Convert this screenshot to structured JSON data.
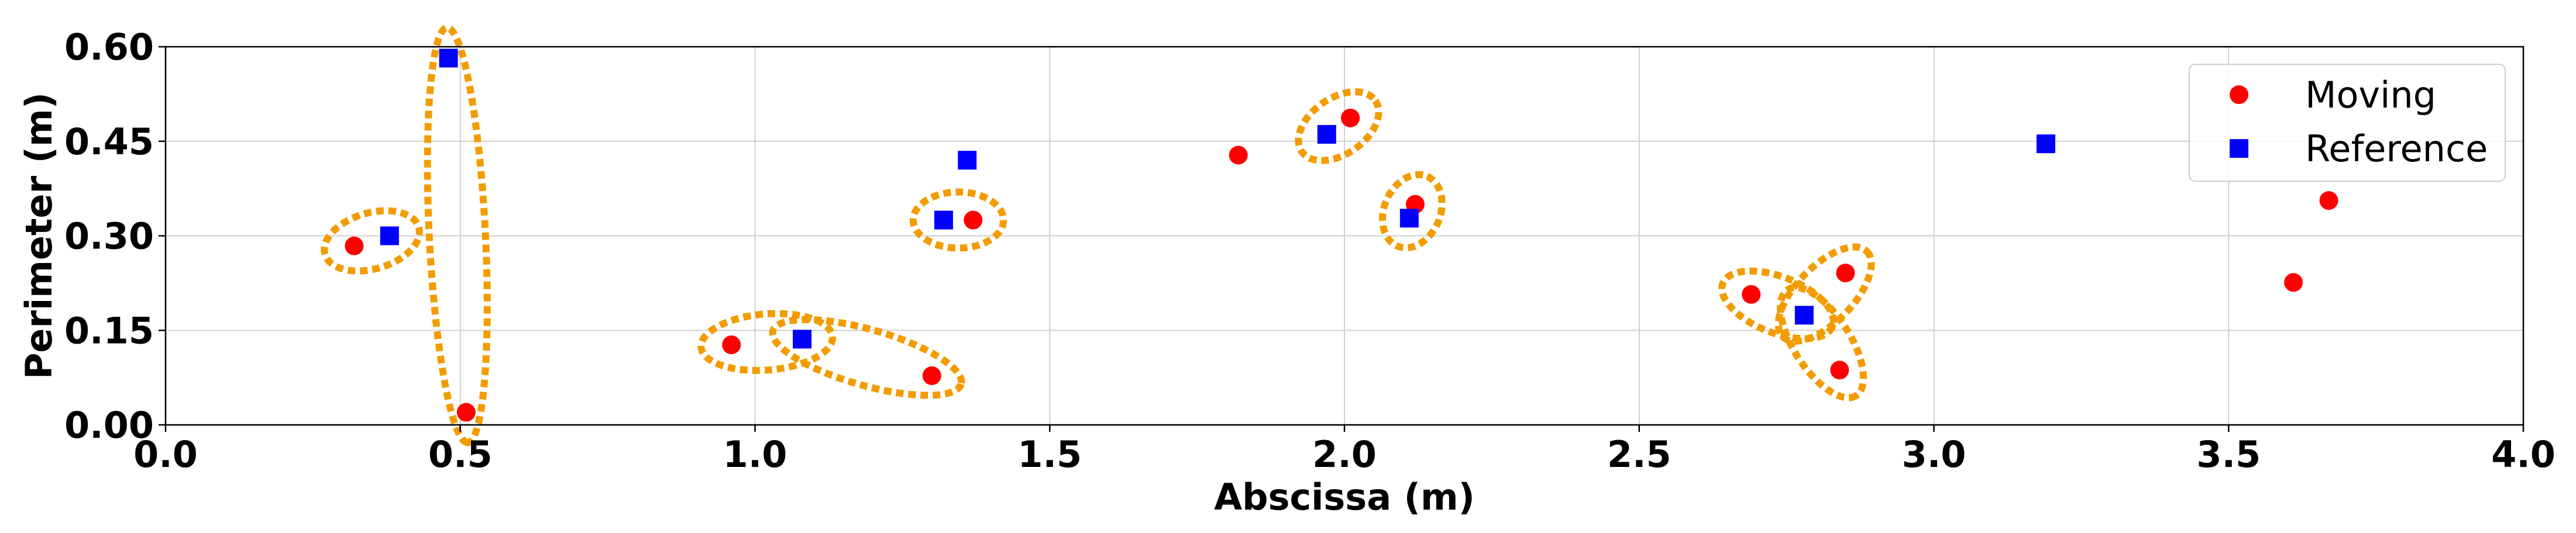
{
  "chart_data": {
    "type": "scatter",
    "title": "",
    "xlabel": "Abscissa (m)",
    "ylabel": "Perimeter (m)",
    "xlim": [
      0.0,
      4.0
    ],
    "ylim": [
      0.0,
      0.6
    ],
    "xticks": [
      "0.0",
      "0.5",
      "1.0",
      "1.5",
      "2.0",
      "2.5",
      "3.0",
      "3.5",
      "4.0"
    ],
    "yticks": [
      "0.00",
      "0.15",
      "0.30",
      "0.45",
      "0.60"
    ],
    "grid": true,
    "legend_position": "top-right",
    "series": [
      {
        "name": "Moving",
        "marker": "circle",
        "color": "#ff0000",
        "points": [
          [
            0.32,
            0.284
          ],
          [
            0.51,
            0.02
          ],
          [
            0.96,
            0.127
          ],
          [
            1.3,
            0.078
          ],
          [
            1.37,
            0.325
          ],
          [
            1.82,
            0.428
          ],
          [
            2.01,
            0.487
          ],
          [
            2.12,
            0.35
          ],
          [
            2.69,
            0.207
          ],
          [
            2.85,
            0.241
          ],
          [
            2.84,
            0.087
          ],
          [
            3.61,
            0.226
          ],
          [
            3.67,
            0.356
          ]
        ]
      },
      {
        "name": "Reference",
        "marker": "square",
        "color": "#0000ff",
        "points": [
          [
            0.38,
            0.3
          ],
          [
            0.48,
            0.582
          ],
          [
            1.08,
            0.136
          ],
          [
            1.32,
            0.325
          ],
          [
            1.36,
            0.42
          ],
          [
            1.97,
            0.461
          ],
          [
            2.11,
            0.328
          ],
          [
            2.78,
            0.174
          ],
          [
            3.19,
            0.446
          ]
        ]
      }
    ],
    "associations": {
      "color": "#f29c00",
      "links": [
        [
          [
            0.32,
            0.284
          ],
          [
            0.38,
            0.3
          ]
        ],
        [
          [
            0.48,
            0.582
          ],
          [
            0.51,
            0.02
          ]
        ],
        [
          [
            0.96,
            0.127
          ],
          [
            1.08,
            0.136
          ]
        ],
        [
          [
            1.08,
            0.136
          ],
          [
            1.3,
            0.078
          ]
        ],
        [
          [
            1.32,
            0.325
          ],
          [
            1.37,
            0.325
          ]
        ],
        [
          [
            1.97,
            0.461
          ],
          [
            2.01,
            0.487
          ]
        ],
        [
          [
            2.11,
            0.328
          ],
          [
            2.12,
            0.35
          ]
        ],
        [
          [
            2.69,
            0.207
          ],
          [
            2.78,
            0.174
          ]
        ],
        [
          [
            2.78,
            0.174
          ],
          [
            2.85,
            0.241
          ]
        ],
        [
          [
            2.78,
            0.174
          ],
          [
            2.84,
            0.087
          ]
        ]
      ]
    }
  }
}
